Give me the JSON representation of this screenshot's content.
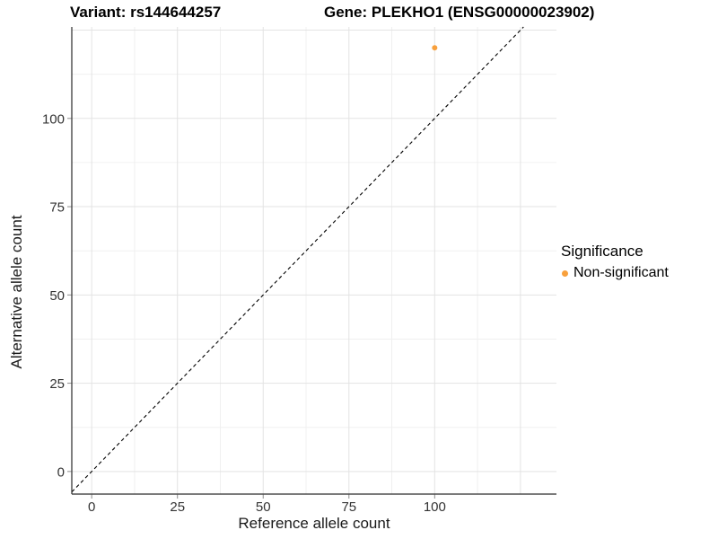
{
  "header": {
    "variant_title": "Variant: rs144644257",
    "gene_title": "Gene: PLEKHO1 (ENSG00000023902)"
  },
  "chart_data": {
    "type": "scatter",
    "xlabel": "Reference allele count",
    "ylabel": "Alternative allele count",
    "x_axis": {
      "label": "Reference allele count",
      "ticks": [
        0,
        25,
        50,
        75,
        100
      ],
      "grid_major": [
        0,
        25,
        50,
        75,
        100,
        125
      ],
      "grid_minor": [
        12.5,
        37.5,
        62.5,
        87.5,
        112.5
      ],
      "range": [
        -5.8,
        135.5
      ]
    },
    "y_axis": {
      "label": "Alternative allele count",
      "ticks": [
        0,
        25,
        50,
        75,
        100
      ],
      "grid_major": [
        0,
        25,
        50,
        75,
        100,
        125
      ],
      "grid_minor": [
        12.5,
        37.5,
        62.5,
        87.5,
        112.5
      ],
      "range": [
        -6.4,
        125.9
      ]
    },
    "grid": true,
    "identity_line": {
      "equation": "y = x",
      "style": "dashed",
      "color": "#000000"
    },
    "series": [
      {
        "name": "Non-significant",
        "color": "#F8A03C",
        "points": [
          {
            "x": 100,
            "y": 120
          }
        ]
      }
    ],
    "legend": {
      "title": "Significance",
      "position": "right",
      "items": [
        {
          "label": "Non-significant",
          "color": "#F8A03C"
        }
      ]
    },
    "colors": {
      "background": "#FFFFFF",
      "grid_major": "#E3E3E3",
      "grid_minor": "#F0F0F0",
      "axis_line": "#2B2B2B",
      "tick_mark": "#8C8C8C",
      "tick_text": "#333333",
      "point_orange": "#F8A03C"
    }
  }
}
